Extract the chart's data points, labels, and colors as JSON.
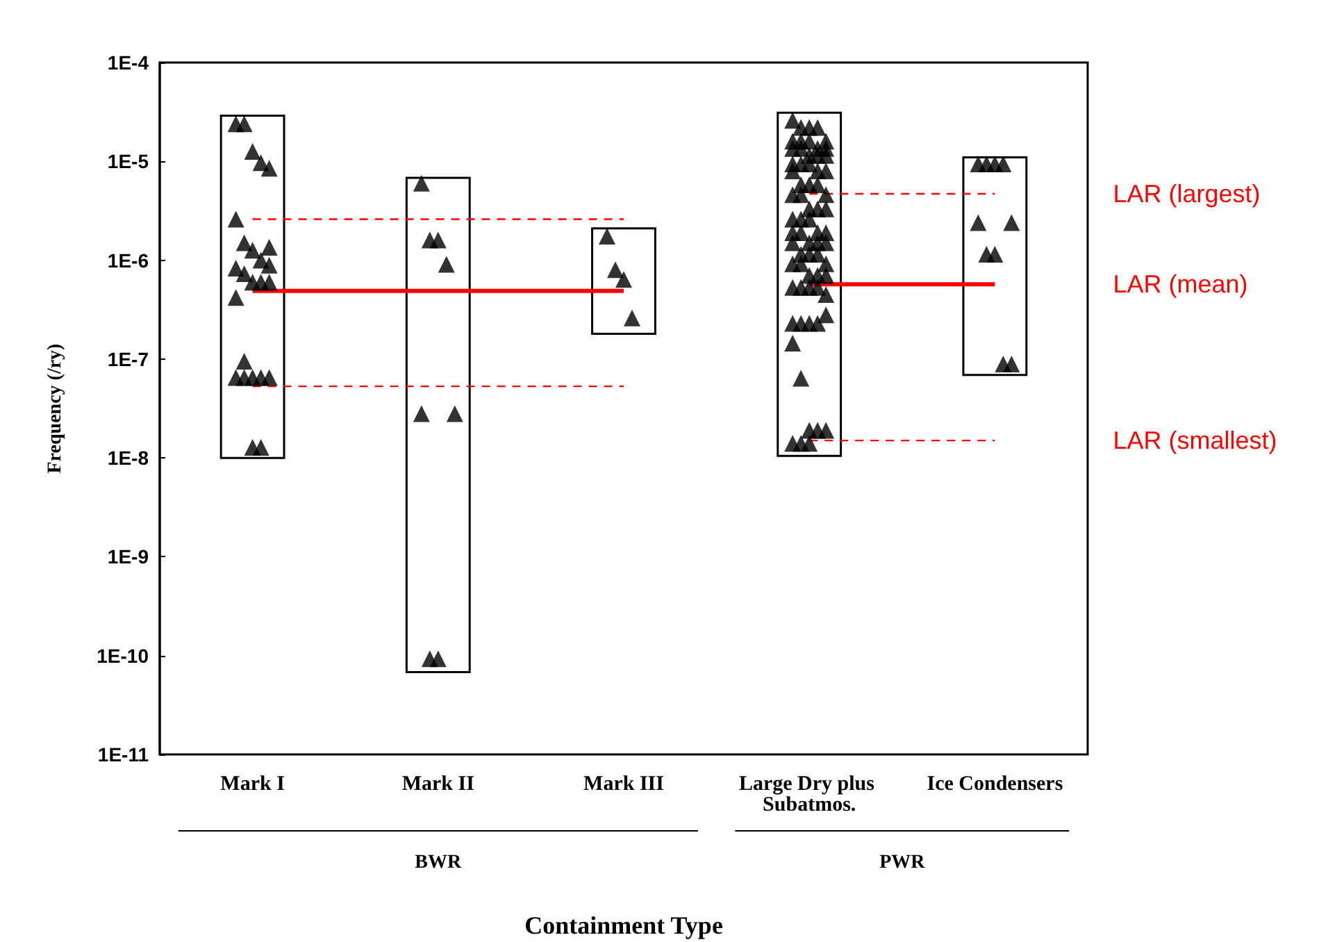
{
  "chart_data": {
    "type": "scatter",
    "xlabel": "Containment Type",
    "ylabel": "Frequency (/ry)",
    "categories": [
      "Mark I",
      "Mark II",
      "Mark III",
      "Large Dry plus Subatmos.",
      "Ice Condensers"
    ],
    "log": "y",
    "ylim": [
      1e-11,
      0.0001
    ],
    "yticks": [
      {
        "value": 1e-11,
        "label": "1E-11"
      },
      {
        "value": 1e-10,
        "label": "1E-10"
      },
      {
        "value": 1e-09,
        "label": "1E-9"
      },
      {
        "value": 1e-08,
        "label": "1E-8"
      },
      {
        "value": 1e-07,
        "label": "1E-7"
      },
      {
        "value": 1e-06,
        "label": "1E-6"
      },
      {
        "value": 1e-05,
        "label": "1E-5"
      },
      {
        "value": 0.0001,
        "label": "1E-4"
      }
    ],
    "grid": false,
    "legend": false,
    "marker": "triangle",
    "annotations": [
      "BWR",
      "PWR"
    ],
    "series": [
      {
        "type": "bar",
        "color": "#000000",
        "base": [
          1e-08,
          6.8e-11,
          1.8e-07,
          1.05e-08,
          6.9e-08
        ],
        "values": [
          2.9e-05,
          6.8e-06,
          1.92e-06,
          3.1e-05,
          1.09e-05
        ]
      },
      {
        "color": "#000000",
        "x": [
          "Mark I",
          "Mark I",
          "Mark I",
          "Mark I",
          "Mark I",
          "Mark I",
          "Mark I",
          "Mark I",
          "Mark I",
          "Mark I",
          "Mark I",
          "Mark I",
          "Mark I",
          "Mark I",
          "Mark I",
          "Mark I",
          "Mark I",
          "Mark I",
          "Mark I",
          "Mark I",
          "Mark I",
          "Mark I",
          "Mark I",
          "Mark I",
          "Mark I"
        ],
        "values": [
          2.4e-05,
          2.4e-05,
          1.26e-05,
          9.7e-06,
          8.5e-06,
          2.6e-06,
          1.5e-06,
          1.26e-06,
          1e-06,
          8.9e-07,
          8.3e-07,
          7.3e-07,
          6e-07,
          6e-07,
          6e-07,
          4.2e-07,
          9.5e-08,
          6.5e-08,
          6.5e-08,
          6.5e-08,
          6.5e-08,
          6.5e-08,
          1.28e-08,
          1.28e-08,
          1.35e-06
        ]
      },
      {
        "color": "#000000",
        "x": [
          "Mark II",
          "Mark II",
          "Mark II",
          "Mark II",
          "Mark II",
          "Mark II",
          "Mark II",
          "Mark II"
        ],
        "values": [
          6e-06,
          1.6e-06,
          1.6e-06,
          9.1e-07,
          2.8e-08,
          2.8e-08,
          9.3e-11,
          9.3e-11
        ]
      },
      {
        "color": "#000000",
        "x": [
          "Mark III",
          "Mark III",
          "Mark III",
          "Mark III"
        ],
        "values": [
          1.75e-06,
          8e-07,
          6.4e-07,
          2.6e-07
        ]
      },
      {
        "color": "#000000",
        "x": [
          "Large Dry plus Subatmos.",
          "Large Dry plus Subatmos.",
          "Large Dry plus Subatmos.",
          "Large Dry plus Subatmos.",
          "Large Dry plus Subatmos.",
          "Large Dry plus Subatmos.",
          "Large Dry plus Subatmos.",
          "Large Dry plus Subatmos.",
          "Large Dry plus Subatmos.",
          "Large Dry plus Subatmos.",
          "Large Dry plus Subatmos.",
          "Large Dry plus Subatmos.",
          "Large Dry plus Subatmos.",
          "Large Dry plus Subatmos.",
          "Large Dry plus Subatmos.",
          "Large Dry plus Subatmos.",
          "Large Dry plus Subatmos.",
          "Large Dry plus Subatmos.",
          "Large Dry plus Subatmos.",
          "Large Dry plus Subatmos.",
          "Large Dry plus Subatmos.",
          "Large Dry plus Subatmos.",
          "Large Dry plus Subatmos.",
          "Large Dry plus Subatmos.",
          "Large Dry plus Subatmos.",
          "Large Dry plus Subatmos.",
          "Large Dry plus Subatmos.",
          "Large Dry plus Subatmos.",
          "Large Dry plus Subatmos.",
          "Large Dry plus Subatmos.",
          "Large Dry plus Subatmos.",
          "Large Dry plus Subatmos.",
          "Large Dry plus Subatmos.",
          "Large Dry plus Subatmos.",
          "Large Dry plus Subatmos.",
          "Large Dry plus Subatmos.",
          "Large Dry plus Subatmos.",
          "Large Dry plus Subatmos.",
          "Large Dry plus Subatmos.",
          "Large Dry plus Subatmos.",
          "Large Dry plus Subatmos.",
          "Large Dry plus Subatmos.",
          "Large Dry plus Subatmos.",
          "Large Dry plus Subatmos.",
          "Large Dry plus Subatmos.",
          "Large Dry plus Subatmos.",
          "Large Dry plus Subatmos.",
          "Large Dry plus Subatmos.",
          "Large Dry plus Subatmos.",
          "Large Dry plus Subatmos.",
          "Large Dry plus Subatmos.",
          "Large Dry plus Subatmos.",
          "Large Dry plus Subatmos.",
          "Large Dry plus Subatmos.",
          "Large Dry plus Subatmos.",
          "Large Dry plus Subatmos.",
          "Large Dry plus Subatmos.",
          "Large Dry plus Subatmos.",
          "Large Dry plus Subatmos.",
          "Large Dry plus Subatmos.",
          "Large Dry plus Subatmos.",
          "Large Dry plus Subatmos.",
          "Large Dry plus Subatmos.",
          "Large Dry plus Subatmos.",
          "Large Dry plus Subatmos.",
          "Large Dry plus Subatmos.",
          "Large Dry plus Subatmos.",
          "Large Dry plus Subatmos."
        ],
        "values": [
          2.6e-05,
          2.2e-05,
          2.2e-05,
          2.2e-05,
          1.6e-05,
          1.6e-05,
          1.6e-05,
          1.6e-05,
          1.35e-05,
          1.35e-05,
          1.35e-05,
          1.35e-05,
          1.15e-05,
          1.15e-05,
          1.15e-05,
          9.4e-06,
          9.4e-06,
          9.4e-06,
          8e-06,
          8e-06,
          8e-06,
          5.8e-06,
          5.8e-06,
          5.8e-06,
          4.6e-06,
          4.6e-06,
          4.6e-06,
          3.3e-06,
          3.3e-06,
          3.3e-06,
          2.6e-06,
          2.6e-06,
          2.6e-06,
          1.9e-06,
          1.9e-06,
          1.9e-06,
          1.9e-06,
          1.5e-06,
          1.5e-06,
          1.5e-06,
          1.5e-06,
          1.15e-06,
          1.15e-06,
          1.15e-06,
          9.2e-07,
          9.2e-07,
          9.2e-07,
          7e-07,
          7e-07,
          7e-07,
          5.3e-07,
          5.3e-07,
          5.3e-07,
          5.3e-07,
          4.5e-07,
          2.3e-07,
          2.3e-07,
          2.3e-07,
          2.3e-07,
          2.8e-07,
          1.45e-07,
          6.4e-08,
          1.9e-08,
          1.9e-08,
          1.9e-08,
          1.4e-08,
          1.4e-08,
          1.4e-08
        ]
      },
      {
        "color": "#000000",
        "x": [
          "Ice Condensers",
          "Ice Condensers",
          "Ice Condensers",
          "Ice Condensers",
          "Ice Condensers",
          "Ice Condensers",
          "Ice Condensers",
          "Ice Condensers",
          "Ice Condensers",
          "Ice Condensers"
        ],
        "values": [
          9.4e-06,
          9.4e-06,
          9.4e-06,
          9.4e-06,
          2.4e-06,
          2.4e-06,
          1.15e-06,
          1.15e-06,
          8.9e-08,
          8.9e-08
        ]
      },
      {
        "type": "line",
        "color": "#ff0000",
        "line_style": "dashed",
        "marker": "none",
        "x": [
          "Mark I",
          "Mark II",
          "Mark III"
        ],
        "values": [
          2.6e-06,
          2.6e-06,
          2.6e-06
        ]
      },
      {
        "type": "line",
        "color": "#ff0000",
        "line_style": "solid",
        "marker": "none",
        "x": [
          "Mark I",
          "Mark II",
          "Mark III"
        ],
        "values": [
          4.9e-07,
          4.9e-07,
          4.9e-07
        ]
      },
      {
        "type": "line",
        "color": "#ff0000",
        "line_style": "dashed",
        "marker": "none",
        "x": [
          "Mark I",
          "Mark II",
          "Mark III"
        ],
        "values": [
          5.3e-08,
          5.3e-08,
          5.3e-08
        ]
      },
      {
        "type": "line",
        "name": "LAR (largest)",
        "color": "#ff0000",
        "line_style": "dashed",
        "marker": "none",
        "x": [
          "Large Dry plus Subatmos.",
          "Ice Condensers"
        ],
        "values": [
          4.7e-06,
          4.7e-06
        ]
      },
      {
        "type": "line",
        "name": "LAR (mean)",
        "color": "#ff0000",
        "line_style": "solid",
        "marker": "none",
        "x": [
          "Large Dry plus Subatmos.",
          "Ice Condensers"
        ],
        "values": [
          5.7e-07,
          5.7e-07
        ]
      },
      {
        "type": "line",
        "name": "LAR (smallest)",
        "color": "#ff0000",
        "line_style": "dashed",
        "marker": "none",
        "x": [
          "Large Dry plus Subatmos.",
          "Ice Condensers"
        ],
        "values": [
          1.5e-08,
          1.5e-08
        ]
      }
    ]
  }
}
